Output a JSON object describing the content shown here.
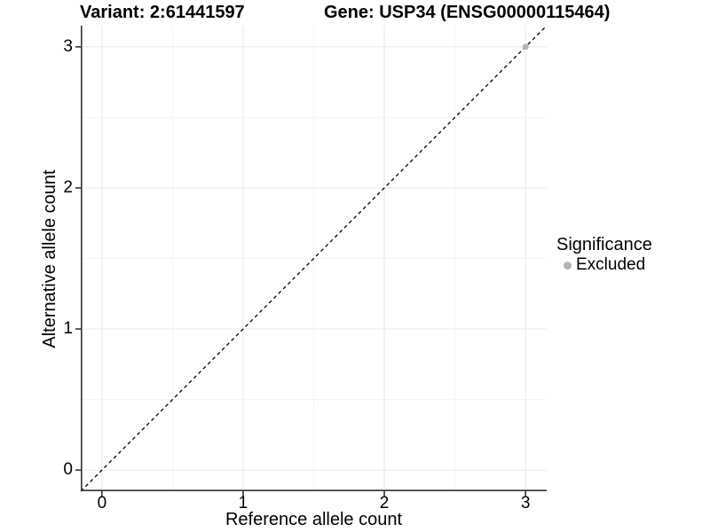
{
  "figure": {
    "title_left": "Variant: 2:61441597",
    "title_right": "Gene: USP34 (ENSG00000115464)"
  },
  "chart_data": {
    "type": "scatter",
    "title": "Variant: 2:61441597    Gene: USP34 (ENSG00000115464)",
    "xlabel": "Reference allele count",
    "ylabel": "Alternative allele count",
    "xlim": [
      -0.15,
      3.15
    ],
    "ylim": [
      -0.15,
      3.15
    ],
    "x_ticks": [
      0,
      1,
      2,
      3
    ],
    "y_ticks": [
      0,
      1,
      2,
      3
    ],
    "x_minor_ticks": [
      0.5,
      1.5,
      2.5
    ],
    "y_minor_ticks": [
      0.5,
      1.5,
      2.5
    ],
    "grid": true,
    "points": [
      {
        "x": 3,
        "y": 3,
        "series": "Excluded"
      }
    ],
    "reference_line": {
      "slope": 1,
      "intercept": 0,
      "style": "dashed",
      "color": "#000000"
    },
    "legend": {
      "title": "Significance",
      "position": "right",
      "items": [
        {
          "label": "Excluded",
          "color": "#b3b3b3"
        }
      ]
    },
    "colors": {
      "background": "#ffffff",
      "grid_major": "#e8e8e8",
      "grid_minor": "#f3f3f3",
      "axis_line": "#333333",
      "point_excluded": "#b3b3b3",
      "text": "#000000"
    }
  }
}
